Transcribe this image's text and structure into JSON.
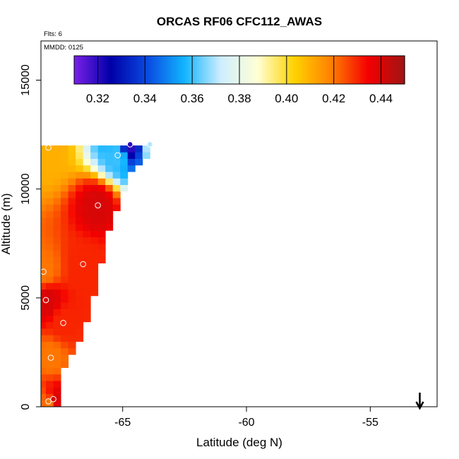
{
  "chart_data": {
    "type": "heatmap",
    "title": "ORCAS RF06 CFC112_AWAS",
    "annotations": {
      "flights": "Flts: 6",
      "date": "MMDD: 0125"
    },
    "xlabel": "Latitude (deg N)",
    "ylabel": "Altitude (m)",
    "xlim": [
      -68.3,
      -52.3
    ],
    "ylim": [
      0,
      16800
    ],
    "xticks": [
      -65,
      -60,
      -55
    ],
    "xtick_labels": [
      "-65",
      "-60",
      "-55"
    ],
    "yticks": [
      0,
      5000,
      10000,
      15000
    ],
    "ytick_labels": [
      "0",
      "5000",
      "10000",
      "15000"
    ],
    "colorbar": {
      "range": [
        0.31,
        0.45
      ],
      "ticks": [
        0.32,
        0.34,
        0.36,
        0.38,
        0.4,
        0.42,
        0.44
      ],
      "tick_labels": [
        "0.32",
        "0.34",
        "0.36",
        "0.38",
        "0.40",
        "0.42",
        "0.44"
      ],
      "placement": "top-inside",
      "colors": [
        "#7a20e8",
        "#0000a8",
        "#0a4ae0",
        "#12b4ff",
        "#cfeeff",
        "#ffffd4",
        "#ffd200",
        "#ff8000",
        "#f50000",
        "#a01414"
      ]
    },
    "arrow_marker": {
      "x": -53.0,
      "direction": "down"
    },
    "grid": false,
    "legend": "none",
    "samples": [
      {
        "x": -68.0,
        "y": 11900,
        "value": 0.41
      },
      {
        "x": -65.2,
        "y": 11550,
        "value": 0.36
      },
      {
        "x": -64.7,
        "y": 12050,
        "value": 0.32
      },
      {
        "x": -63.9,
        "y": 12050,
        "value": 0.37
      },
      {
        "x": -66.0,
        "y": 9250,
        "value": 0.44
      },
      {
        "x": -66.6,
        "y": 6550,
        "value": 0.43
      },
      {
        "x": -68.2,
        "y": 6200,
        "value": 0.42
      },
      {
        "x": -68.1,
        "y": 4900,
        "value": 0.44
      },
      {
        "x": -67.4,
        "y": 3850,
        "value": 0.43
      },
      {
        "x": -67.9,
        "y": 2250,
        "value": 0.42
      },
      {
        "x": -67.8,
        "y": 350,
        "value": 0.44
      },
      {
        "x": -68.0,
        "y": 250,
        "value": 0.42
      }
    ]
  }
}
